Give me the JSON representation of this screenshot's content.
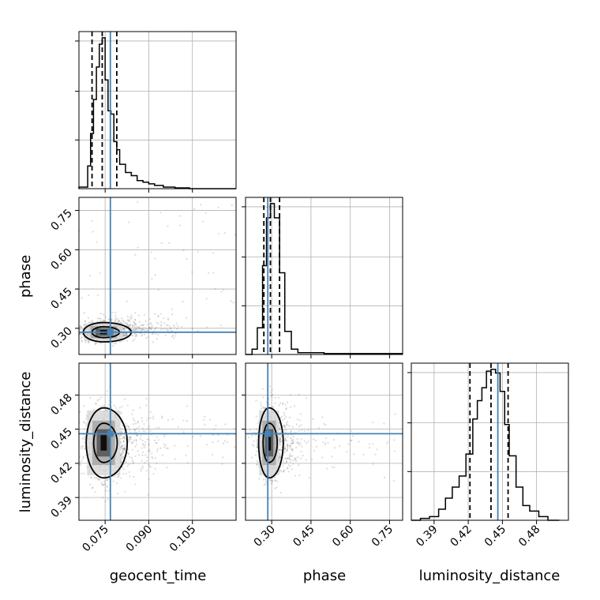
{
  "chart_data": {
    "type": "corner",
    "parameters": [
      "geocent_time",
      "phase",
      "luminosity_distance"
    ],
    "ranges": {
      "geocent_time": [
        0.066,
        0.12
      ],
      "phase": [
        0.2,
        0.8
      ],
      "luminosity_distance": [
        0.37,
        0.508
      ]
    },
    "ticks": {
      "geocent_time": [
        0.075,
        0.09,
        0.105
      ],
      "phase": [
        0.3,
        0.45,
        0.6,
        0.75
      ],
      "luminosity_distance": [
        0.39,
        0.42,
        0.45,
        0.48
      ]
    },
    "tick_labels": {
      "geocent_time": [
        "0.075",
        "0.090",
        "0.105"
      ],
      "phase": [
        "0.30",
        "0.45",
        "0.60",
        "0.75"
      ],
      "luminosity_distance": [
        "0.39",
        "0.42",
        "0.45",
        "0.48"
      ]
    },
    "axis_labels": {
      "geocent_time": "geocent_time",
      "phase": "phase",
      "luminosity_distance": "luminosity_distance"
    },
    "truths": {
      "geocent_time": 0.0768,
      "phase": 0.285,
      "luminosity_distance": 0.446
    },
    "truth_color": "#4682b4",
    "quantiles": {
      "geocent_time": [
        0.0705,
        0.074,
        0.079
      ],
      "phase": [
        0.27,
        0.295,
        0.33
      ],
      "luminosity_distance": [
        0.4215,
        0.44,
        0.455
      ]
    },
    "histograms": {
      "geocent_time": {
        "edges": [
          0.066,
          0.069,
          0.07,
          0.071,
          0.072,
          0.073,
          0.074,
          0.075,
          0.076,
          0.077,
          0.078,
          0.079,
          0.08,
          0.082,
          0.084,
          0.086,
          0.088,
          0.09,
          0.092,
          0.095,
          0.099,
          0.104,
          0.12
        ],
        "counts": [
          0.01,
          0.14,
          0.34,
          0.55,
          0.75,
          0.89,
          0.93,
          0.67,
          0.48,
          0.46,
          0.29,
          0.24,
          0.15,
          0.1,
          0.08,
          0.05,
          0.04,
          0.03,
          0.02,
          0.01,
          0.005,
          0.0
        ]
      },
      "phase": {
        "edges": [
          0.2,
          0.225,
          0.245,
          0.265,
          0.28,
          0.295,
          0.31,
          0.33,
          0.35,
          0.375,
          0.4,
          0.45,
          0.5,
          0.6,
          0.7,
          0.8
        ],
        "counts": [
          0.0,
          0.03,
          0.15,
          0.5,
          0.77,
          0.85,
          0.77,
          0.46,
          0.13,
          0.03,
          0.01,
          0.01,
          0.005,
          0.005,
          0.005
        ]
      },
      "luminosity_distance": {
        "edges": [
          0.37,
          0.378,
          0.386,
          0.394,
          0.4,
          0.406,
          0.412,
          0.418,
          0.424,
          0.428,
          0.432,
          0.436,
          0.44,
          0.444,
          0.448,
          0.452,
          0.456,
          0.462,
          0.468,
          0.474,
          0.482,
          0.49,
          0.5
        ],
        "counts": [
          0.0,
          0.01,
          0.02,
          0.06,
          0.12,
          0.18,
          0.24,
          0.36,
          0.55,
          0.65,
          0.72,
          0.81,
          0.82,
          0.8,
          0.7,
          0.52,
          0.35,
          0.18,
          0.08,
          0.05,
          0.02,
          0.0
        ]
      }
    },
    "posterior_2d": [
      {
        "x": "geocent_time",
        "y": "phase",
        "x_mean": 0.0745,
        "x_sd": 0.0035,
        "y_mean": 0.285,
        "y_sd": 0.018,
        "tail_x": "right",
        "tail_y": "up"
      },
      {
        "x": "geocent_time",
        "y": "luminosity_distance",
        "x_mean": 0.0745,
        "x_sd": 0.003,
        "y_mean": 0.438,
        "y_sd": 0.015,
        "tail_x": "right",
        "tail_y": "none"
      },
      {
        "x": "phase",
        "y": "luminosity_distance",
        "x_mean": 0.29,
        "x_sd": 0.02,
        "y_mean": 0.438,
        "y_sd": 0.015,
        "tail_x": "right",
        "tail_y": "none"
      }
    ],
    "grid": true,
    "line_color": "#000000",
    "point_color": "#808080"
  }
}
